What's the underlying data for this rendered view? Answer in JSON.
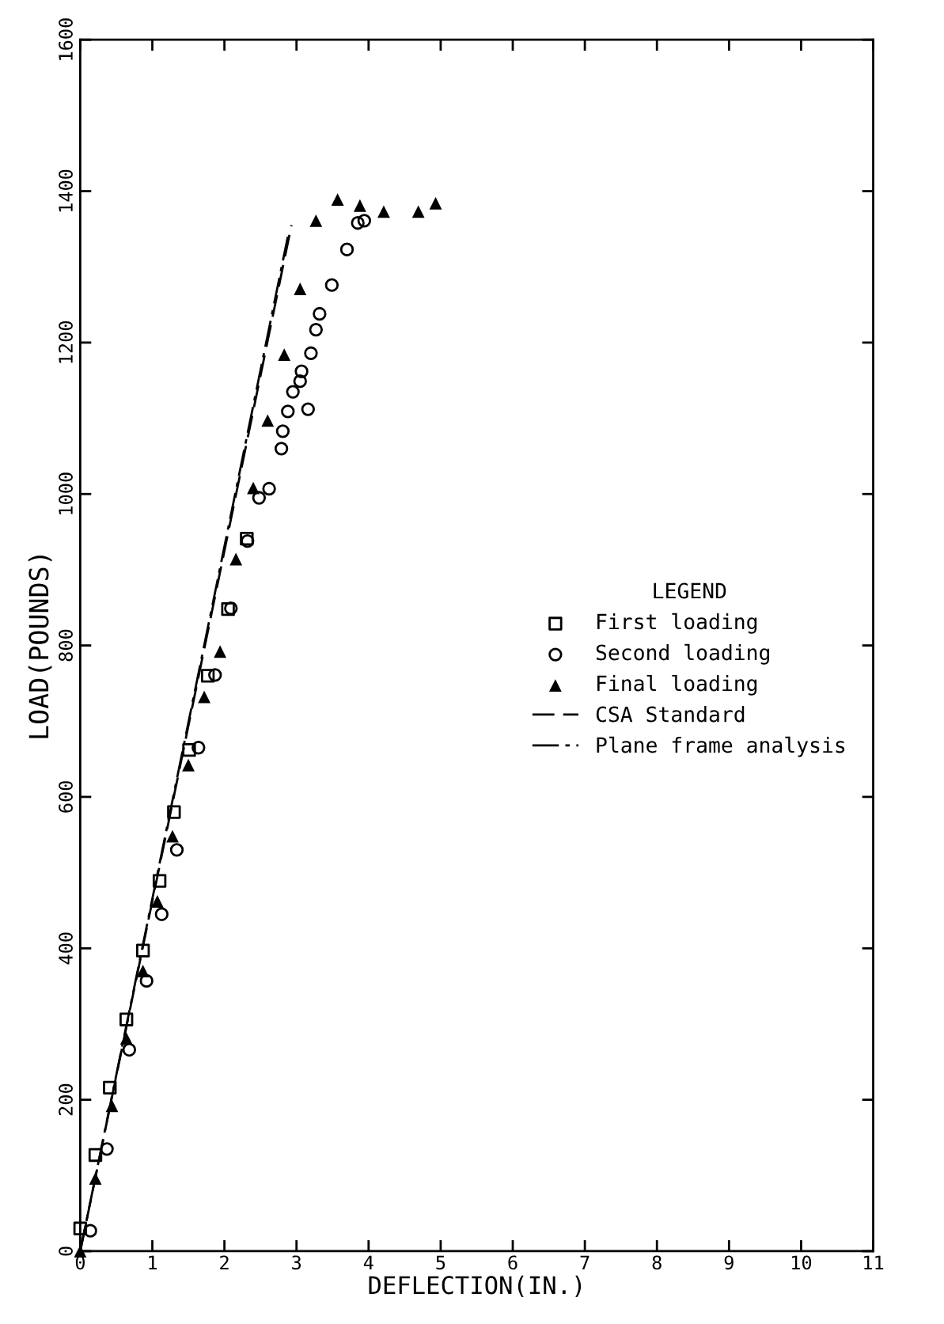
{
  "chart_data": {
    "type": "scatter",
    "xlabel": "DEFLECTION(IN.)",
    "ylabel": "LOAD(POUNDS)",
    "legend_title": "LEGEND",
    "legend": "right",
    "xlim": [
      0,
      11
    ],
    "xticks": [
      0,
      1,
      2,
      3,
      4,
      5,
      6,
      7,
      8,
      9,
      10,
      11
    ],
    "ylim": [
      0,
      1600
    ],
    "yticks": [
      0,
      200,
      400,
      600,
      800,
      1000,
      1200,
      1400,
      1600
    ],
    "grid": false,
    "series": [
      {
        "name": "First loading",
        "marker": "square",
        "color": "#000000",
        "x": [
          0,
          0.21,
          0.41,
          0.64,
          0.87,
          1.1,
          1.3,
          1.51,
          1.77,
          2.05,
          2.31
        ],
        "values": [
          30,
          127,
          216,
          306,
          397,
          489,
          580,
          662,
          760,
          848,
          941
        ]
      },
      {
        "name": "Second loading",
        "marker": "circle",
        "color": "#000000",
        "x": [
          0.14,
          0.37,
          0.68,
          0.92,
          1.13,
          1.34,
          1.64,
          1.87,
          2.09,
          2.32,
          2.48,
          2.62,
          2.79,
          2.81,
          2.88,
          3.16,
          2.95,
          3.05,
          3.07,
          3.2,
          3.27,
          3.32,
          3.49,
          3.7,
          3.85,
          3.94
        ],
        "values": [
          27,
          135,
          266,
          357,
          445,
          530,
          665,
          761,
          849,
          938,
          995,
          1007,
          1060,
          1083,
          1109,
          1112,
          1135,
          1149,
          1162,
          1186,
          1217,
          1238,
          1276,
          1323,
          1358,
          1361
        ]
      },
      {
        "name": "Final loading",
        "marker": "triangle",
        "color": "#000000",
        "x": [
          0,
          0.21,
          0.44,
          0.64,
          0.87,
          1.07,
          1.28,
          1.5,
          1.72,
          1.94,
          2.16,
          2.4,
          2.6,
          2.83,
          3.05,
          3.27,
          3.57,
          3.88,
          4.21,
          4.69,
          4.93
        ],
        "values": [
          0,
          96,
          192,
          281,
          370,
          462,
          548,
          642,
          732,
          792,
          914,
          1008,
          1097,
          1184,
          1271,
          1361,
          1389,
          1381,
          1373,
          1373,
          1384
        ]
      },
      {
        "name": "CSA Standard",
        "type": "line",
        "line_style": "dashed",
        "color": "#000000",
        "x": [
          0,
          2.93
        ],
        "values": [
          0,
          1355
        ]
      },
      {
        "name": "Plane frame analysis",
        "type": "line",
        "line_style": "dashdot",
        "color": "#000000",
        "x": [
          0,
          2.88
        ],
        "values": [
          0,
          1340
        ]
      }
    ]
  }
}
